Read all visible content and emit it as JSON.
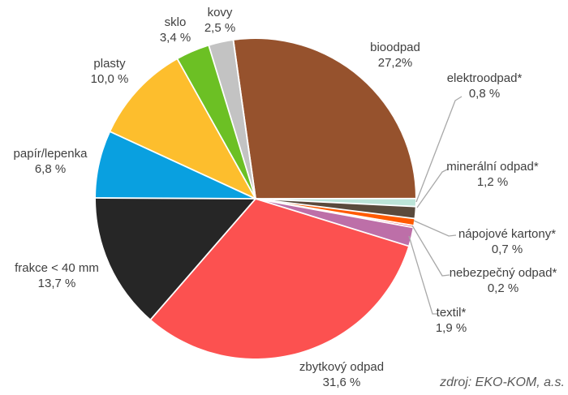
{
  "chart_data": {
    "type": "pie",
    "title": "",
    "unit": "%",
    "direction": "clockwise",
    "rotation_deg": -8,
    "labels_position": "outside",
    "background_color": "#FFFFFF",
    "label_text_color": "#3F3F3F",
    "leader_line_color": "#A8A8A8",
    "slice_separator_color": "#FFFFFF",
    "slices": [
      {
        "id": "bioodpad",
        "label": "bioodpad",
        "value": 27.2,
        "display": "27,2%",
        "color": "#96522D"
      },
      {
        "id": "elektroodpad",
        "label": "elektroodpad*",
        "value": 0.8,
        "display": "0,8 %",
        "color": "#BCE4D8"
      },
      {
        "id": "mineralni-odpad",
        "label": "minerální odpad*",
        "value": 1.2,
        "display": "1,2 %",
        "color": "#5A4A3C"
      },
      {
        "id": "napojove-kartony",
        "label": "nápojové kartony*",
        "value": 0.7,
        "display": "0,7 %",
        "color": "#FF5A00"
      },
      {
        "id": "nebezpecny-odpad",
        "label": "nebezpečný odpad*",
        "value": 0.2,
        "display": "0,2 %",
        "color": "#E3344E"
      },
      {
        "id": "textil",
        "label": "textil*",
        "value": 1.9,
        "display": "1,9 %",
        "color": "#BD6FA8"
      },
      {
        "id": "zbytkovy-odpad",
        "label": "zbytkový odpad",
        "value": 31.6,
        "display": "31,6 %",
        "color": "#FC5150"
      },
      {
        "id": "frakce-pod-40mm",
        "label": "frakce < 40 mm",
        "value": 13.7,
        "display": "13,7 %",
        "color": "#262626"
      },
      {
        "id": "papir-lepenka",
        "label": "papír/lepenka",
        "value": 6.8,
        "display": "6,8 %",
        "color": "#09A0E0"
      },
      {
        "id": "plasty",
        "label": "plasty",
        "value": 10.0,
        "display": "10,0 %",
        "color": "#FDBE2D"
      },
      {
        "id": "sklo",
        "label": "sklo",
        "value": 3.4,
        "display": "3,4 %",
        "color": "#6CC024"
      },
      {
        "id": "kovy",
        "label": "kovy",
        "value": 2.5,
        "display": "2,5 %",
        "color": "#C3C3C3"
      }
    ],
    "source_note": "zdroj: EKO-KOM, a.s."
  }
}
